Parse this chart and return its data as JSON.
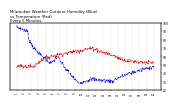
{
  "title": "Milwaukee Weather Outdoor Humidity (Blue)\nvs Temperature (Red)\nEvery 5 Minutes",
  "title_fontsize": 2.8,
  "background_color": "#ffffff",
  "grid_color": "#bbbbbb",
  "blue_color": "#0000dd",
  "red_color": "#dd0000",
  "n_points": 288,
  "ylim": [
    20,
    100
  ],
  "yticks_right": [
    20,
    30,
    40,
    50,
    60,
    70,
    80,
    90,
    100
  ],
  "ylabel_right_fontsize": 2.2,
  "xlabel_fontsize": 1.8,
  "linewidth": 0.55,
  "markersize": 0.6
}
